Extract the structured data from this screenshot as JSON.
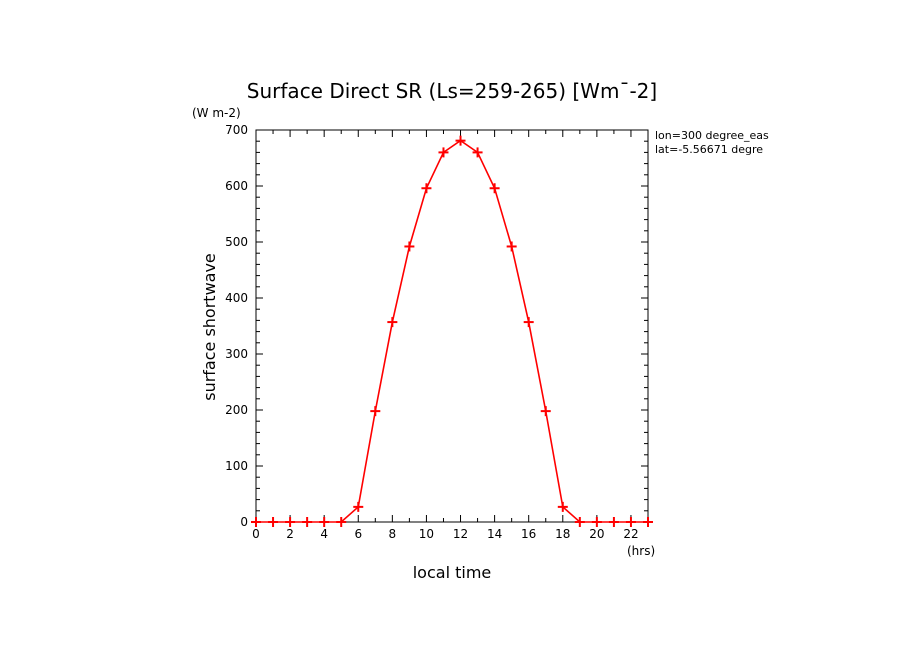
{
  "chart_data": {
    "type": "line",
    "title": "Surface Direct SR (Ls=259-265) [Wm¯-2]",
    "ylabel": "surface shortwave",
    "xlabel": "local time",
    "yunit": "(W m-2)",
    "xunit": "(hrs)",
    "annotations": [
      "lon=300 degree_eas",
      "lat=-5.56671 degre"
    ],
    "xlim": [
      0,
      23
    ],
    "ylim": [
      0,
      700
    ],
    "xticks": [
      0,
      2,
      4,
      6,
      8,
      10,
      12,
      14,
      16,
      18,
      20,
      22
    ],
    "yticks": [
      0,
      100,
      200,
      300,
      400,
      500,
      600,
      700
    ],
    "grid": false,
    "series": [
      {
        "color": "#ff0000",
        "marker": "plus",
        "x": [
          0,
          1,
          2,
          3,
          4,
          5,
          6,
          7,
          8,
          9,
          10,
          11,
          12,
          13,
          14,
          15,
          16,
          17,
          18,
          19,
          20,
          21,
          22,
          23
        ],
        "y": [
          0,
          0,
          0,
          0,
          0,
          0,
          27,
          198,
          357,
          492,
          596,
          660,
          681,
          660,
          596,
          492,
          357,
          198,
          27,
          0,
          0,
          0,
          0,
          0
        ]
      }
    ]
  }
}
